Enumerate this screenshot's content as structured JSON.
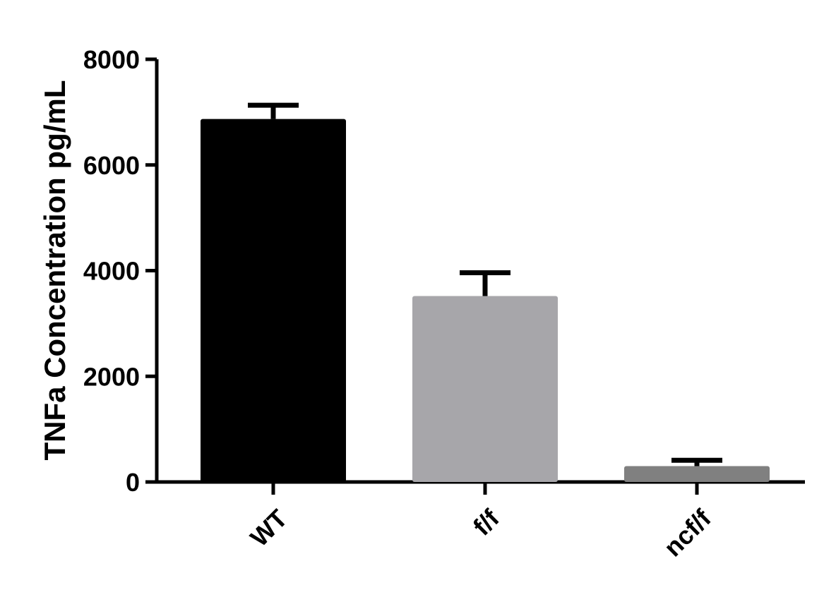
{
  "chart_data": {
    "type": "bar",
    "y_label": "TNFa Concentration pg/mL",
    "categories": [
      "WT",
      "f/f",
      "ncf/f"
    ],
    "values": [
      6870,
      3520,
      300
    ],
    "errors": [
      260,
      440,
      110
    ],
    "colors": [
      "#000000",
      "#a7a6aa",
      "#808080"
    ],
    "ylim": [
      0,
      8000
    ],
    "yticks": [
      0,
      2000,
      4000,
      6000,
      8000
    ],
    "grid": false
  }
}
